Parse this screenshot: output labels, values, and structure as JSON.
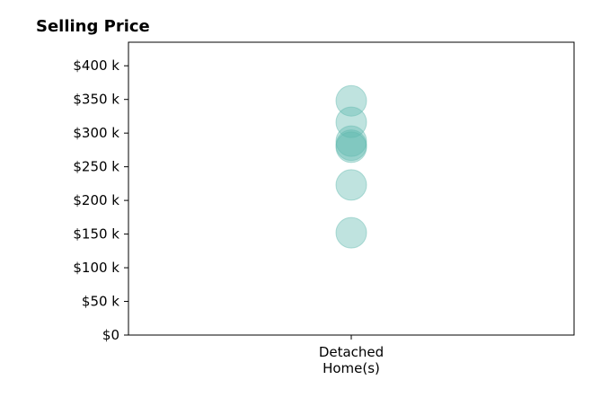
{
  "chart_data": {
    "type": "scatter",
    "title": "Selling Price",
    "xlabel": "",
    "ylabel": "",
    "categories": [
      "Detached Home(s)"
    ],
    "category_label_lines": [
      "Detached",
      "Home(s)"
    ],
    "points": [
      {
        "category": "Detached Home(s)",
        "value": 348000
      },
      {
        "category": "Detached Home(s)",
        "value": 316000
      },
      {
        "category": "Detached Home(s)",
        "value": 288000
      },
      {
        "category": "Detached Home(s)",
        "value": 282000
      },
      {
        "category": "Detached Home(s)",
        "value": 279000
      },
      {
        "category": "Detached Home(s)",
        "value": 223000
      },
      {
        "category": "Detached Home(s)",
        "value": 152000
      }
    ],
    "y_ticks": [
      0,
      50000,
      100000,
      150000,
      200000,
      250000,
      300000,
      350000,
      400000
    ],
    "y_tick_labels": [
      "$0",
      "$50 k",
      "$100 k",
      "$150 k",
      "$200 k",
      "$250 k",
      "$300 k",
      "$350 k",
      "$400 k"
    ],
    "ylim": [
      0,
      435000
    ],
    "grid": false,
    "legend": "none",
    "marker_color": "#5fb8ae"
  }
}
